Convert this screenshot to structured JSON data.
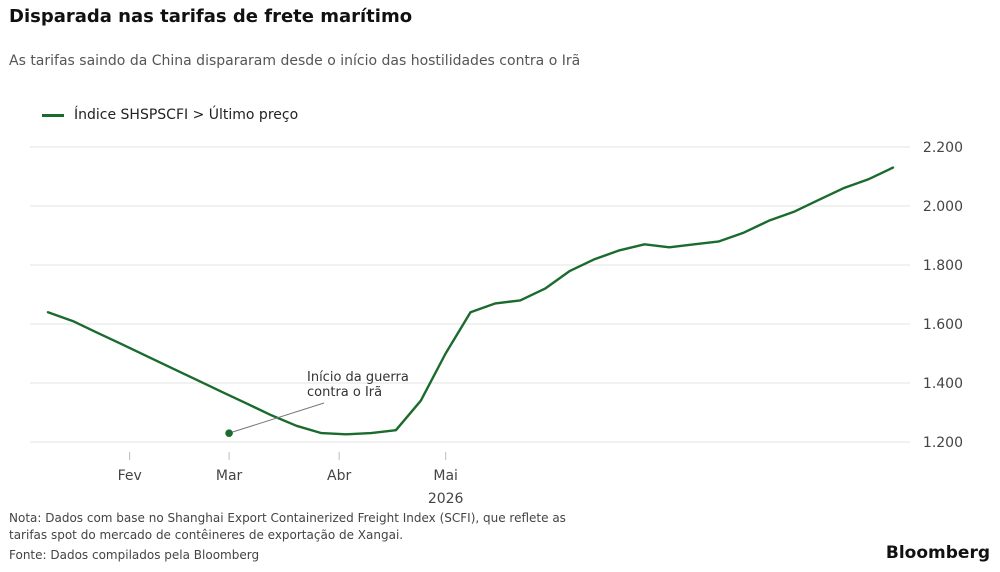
{
  "title": "Disparada nas tarifas de frete marítimo",
  "subtitle": "As tarifas saindo da China dispararam desde o início das hostilidades contra o Irã",
  "legend_label": "Índice SHSPSCFI > Último preço",
  "note": "Nota: Dados com base no Shanghai Export Containerized Freight Index (SCFI), que reflete as tarifas spot do mercado de contêineres de exportação de Xangai.",
  "source": "Fonte: Dados compilados pela Bloomberg",
  "brand": "Bloomberg",
  "colors": {
    "line": "#1b6b2f",
    "grid": "#e3e3e3",
    "axis_text": "#444444"
  },
  "chart_data": {
    "type": "line",
    "title": "Disparada nas tarifas de frete marítimo",
    "xlabel": "2026",
    "ylabel": "",
    "ylim": [
      1200,
      2200
    ],
    "y_ticks": [
      1200,
      1400,
      1600,
      1800,
      2000,
      2200
    ],
    "y_tick_labels": [
      "1.200",
      "1.400",
      "1.600",
      "1.800",
      "2.000",
      "2.200"
    ],
    "x_ticks": [
      {
        "label": "Fev",
        "date": "2026-02-01"
      },
      {
        "label": "Mar",
        "date": "2026-03-01"
      },
      {
        "label": "Abr",
        "date": "2026-04-01"
      },
      {
        "label": "Mai",
        "date": "2026-05-01"
      }
    ],
    "year_label": "2026",
    "grid": true,
    "legend_position": "top-left",
    "series": [
      {
        "name": "Índice SHSPSCFI > Último preço",
        "points": [
          {
            "date": "2026-01-09",
            "value": 1640
          },
          {
            "date": "2026-01-16",
            "value": 1610
          },
          {
            "date": "2026-01-23",
            "value": 1570
          },
          {
            "date": "2026-01-30",
            "value": 1530
          },
          {
            "date": "2026-02-06",
            "value": 1490
          },
          {
            "date": "2026-02-13",
            "value": 1450
          },
          {
            "date": "2026-02-20",
            "value": 1410
          },
          {
            "date": "2026-02-27",
            "value": 1370
          },
          {
            "date": "2026-03-06",
            "value": 1330
          },
          {
            "date": "2026-03-13",
            "value": 1290
          },
          {
            "date": "2026-03-20",
            "value": 1255
          },
          {
            "date": "2026-03-27",
            "value": 1230
          },
          {
            "date": "2026-04-03",
            "value": 1226
          },
          {
            "date": "2026-04-10",
            "value": 1230
          },
          {
            "date": "2026-04-17",
            "value": 1240
          },
          {
            "date": "2026-04-24",
            "value": 1340
          },
          {
            "date": "2026-05-01",
            "value": 1500
          },
          {
            "date": "2026-05-08",
            "value": 1640
          },
          {
            "date": "2026-05-15",
            "value": 1670
          },
          {
            "date": "2026-05-22",
            "value": 1680
          },
          {
            "date": "2026-05-29",
            "value": 1720
          },
          {
            "date": "2026-06-05",
            "value": 1780
          },
          {
            "date": "2026-06-12",
            "value": 1820
          },
          {
            "date": "2026-06-19",
            "value": 1850
          },
          {
            "date": "2026-06-26",
            "value": 1870
          },
          {
            "date": "2026-07-03",
            "value": 1860
          },
          {
            "date": "2026-07-10",
            "value": 1870
          },
          {
            "date": "2026-07-17",
            "value": 1880
          },
          {
            "date": "2026-07-24",
            "value": 1910
          },
          {
            "date": "2026-07-31",
            "value": 1950
          },
          {
            "date": "2026-08-07",
            "value": 1980
          },
          {
            "date": "2026-08-14",
            "value": 2020
          },
          {
            "date": "2026-08-21",
            "value": 2060
          },
          {
            "date": "2026-08-28",
            "value": 2090
          },
          {
            "date": "2026-09-04",
            "value": 2130
          }
        ]
      }
    ],
    "annotations": [
      {
        "label_lines": [
          "Início da guerra",
          "contra o Irã"
        ],
        "date": "2026-03-01",
        "value": 1230
      }
    ]
  }
}
